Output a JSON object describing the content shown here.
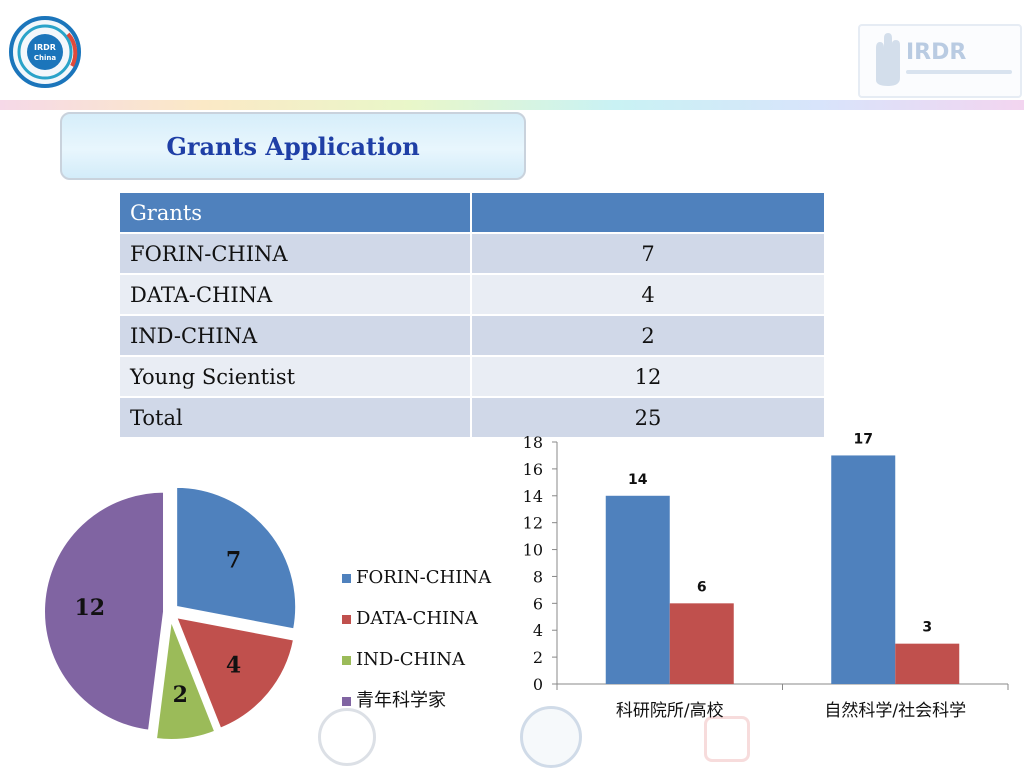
{
  "logo_left": {
    "text_line1": "IRDR",
    "text_line2": "China"
  },
  "logo_right": {
    "text": "IRDR"
  },
  "title": "Grants Application",
  "table": {
    "headers": [
      "Grants",
      ""
    ],
    "rows": [
      {
        "name": "FORIN-CHINA",
        "value": "7"
      },
      {
        "name": "DATA-CHINA",
        "value": "4"
      },
      {
        "name": "IND-CHINA",
        "value": "2"
      },
      {
        "name": "Young Scientist",
        "value": "12"
      },
      {
        "name": "Total",
        "value": "25"
      }
    ]
  },
  "colors": {
    "blue": "#4f81bd",
    "red": "#c0504d",
    "green": "#9bbb59",
    "purple": "#8064a2"
  },
  "chart_data": [
    {
      "type": "pie",
      "categories": [
        "FORIN-CHINA",
        "DATA-CHINA",
        "IND-CHINA",
        "青年科学家"
      ],
      "values": [
        7,
        4,
        2,
        12
      ],
      "legend": "right"
    },
    {
      "type": "bar",
      "categories": [
        "科研院所/高校",
        "自然科学/社会科学"
      ],
      "series": [
        {
          "values": [
            14,
            17
          ]
        },
        {
          "values": [
            6,
            3
          ]
        }
      ],
      "ylim": [
        0,
        18
      ],
      "yticks": [
        0,
        2,
        4,
        6,
        8,
        10,
        12,
        14,
        16,
        18
      ],
      "grid": false
    }
  ]
}
